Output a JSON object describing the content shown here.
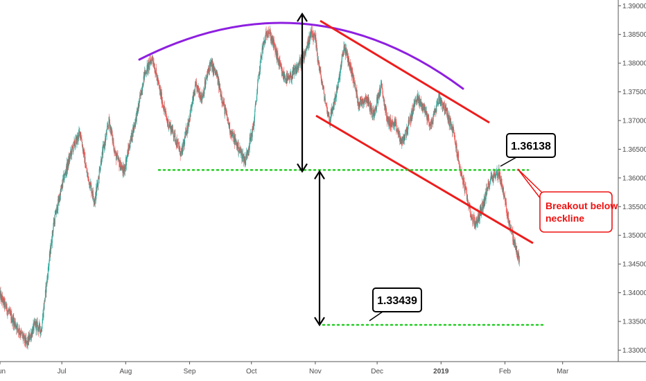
{
  "colors": {
    "up": "#26a69a",
    "down": "#ef5350",
    "arc": "#8e1fe0",
    "channel": "#ee1c1c",
    "neckline": "#22cc22",
    "arrow": "#000000",
    "callout_red": "#e11",
    "axis": "#555555"
  },
  "chart_data": {
    "type": "candlestick",
    "title": "",
    "xlabel": "",
    "ylabel": "",
    "ylim": [
      1.328,
      1.391
    ],
    "y_ticks": [
      "1.39000",
      "1.38500",
      "1.38000",
      "1.37500",
      "1.37000",
      "1.36500",
      "1.36000",
      "1.35500",
      "1.35000",
      "1.34500",
      "1.34000",
      "1.33500",
      "1.33000"
    ],
    "y_tick_values": [
      1.39,
      1.385,
      1.38,
      1.375,
      1.37,
      1.365,
      1.36,
      1.355,
      1.35,
      1.345,
      1.34,
      1.335,
      1.33
    ],
    "x_ticks": [
      "Jun",
      "Jul",
      "Aug",
      "Sep",
      "Oct",
      "Nov",
      "Dec",
      "2019",
      "Feb",
      "Mar"
    ],
    "x_tick_dates": [
      "2018-06-01",
      "2018-07-01",
      "2018-08-01",
      "2018-09-01",
      "2018-10-01",
      "2018-11-01",
      "2018-12-01",
      "2019-01-01",
      "2019-02-01",
      "2019-03-01"
    ],
    "x_start": "2018-06-01",
    "x_end": "2019-03-28",
    "price_path": [
      [
        "2018-06-01",
        1.3395
      ],
      [
        "2018-06-06",
        1.336
      ],
      [
        "2018-06-11",
        1.333
      ],
      [
        "2018-06-14",
        1.331
      ],
      [
        "2018-06-18",
        1.3345
      ],
      [
        "2018-06-21",
        1.3335
      ],
      [
        "2018-06-25",
        1.346
      ],
      [
        "2018-06-27",
        1.352
      ],
      [
        "2018-07-02",
        1.36
      ],
      [
        "2018-07-06",
        1.365
      ],
      [
        "2018-07-10",
        1.368
      ],
      [
        "2018-07-13",
        1.361
      ],
      [
        "2018-07-17",
        1.356
      ],
      [
        "2018-07-20",
        1.363
      ],
      [
        "2018-07-24",
        1.37
      ],
      [
        "2018-07-27",
        1.364
      ],
      [
        "2018-07-31",
        1.361
      ],
      [
        "2018-08-03",
        1.366
      ],
      [
        "2018-08-07",
        1.372
      ],
      [
        "2018-08-10",
        1.378
      ],
      [
        "2018-08-14",
        1.381
      ],
      [
        "2018-08-17",
        1.376
      ],
      [
        "2018-08-21",
        1.37
      ],
      [
        "2018-08-24",
        1.368
      ],
      [
        "2018-08-28",
        1.364
      ],
      [
        "2018-08-31",
        1.369
      ],
      [
        "2018-09-04",
        1.376
      ],
      [
        "2018-09-07",
        1.374
      ],
      [
        "2018-09-11",
        1.38
      ],
      [
        "2018-09-14",
        1.378
      ],
      [
        "2018-09-18",
        1.372
      ],
      [
        "2018-09-21",
        1.368
      ],
      [
        "2018-09-25",
        1.365
      ],
      [
        "2018-09-28",
        1.363
      ],
      [
        "2018-10-02",
        1.369
      ],
      [
        "2018-10-04",
        1.376
      ],
      [
        "2018-10-06",
        1.382
      ],
      [
        "2018-10-09",
        1.386
      ],
      [
        "2018-10-12",
        1.383
      ],
      [
        "2018-10-16",
        1.378
      ],
      [
        "2018-10-19",
        1.377
      ],
      [
        "2018-10-23",
        1.379
      ],
      [
        "2018-10-26",
        1.381
      ],
      [
        "2018-10-30",
        1.385
      ],
      [
        "2018-11-01",
        1.384
      ],
      [
        "2018-11-03",
        1.379
      ],
      [
        "2018-11-06",
        1.373
      ],
      [
        "2018-11-08",
        1.37
      ],
      [
        "2018-11-12",
        1.376
      ],
      [
        "2018-11-15",
        1.383
      ],
      [
        "2018-11-19",
        1.378
      ],
      [
        "2018-11-22",
        1.373
      ],
      [
        "2018-11-26",
        1.374
      ],
      [
        "2018-11-29",
        1.371
      ],
      [
        "2018-12-03",
        1.376
      ],
      [
        "2018-12-06",
        1.37
      ],
      [
        "2018-12-10",
        1.369
      ],
      [
        "2018-12-13",
        1.366
      ],
      [
        "2018-12-17",
        1.37
      ],
      [
        "2018-12-20",
        1.374
      ],
      [
        "2018-12-24",
        1.372
      ],
      [
        "2018-12-27",
        1.369
      ],
      [
        "2018-12-31",
        1.374
      ],
      [
        "2019-01-03",
        1.372
      ],
      [
        "2019-01-07",
        1.368
      ],
      [
        "2019-01-10",
        1.362
      ],
      [
        "2019-01-14",
        1.356
      ],
      [
        "2019-01-16",
        1.353
      ],
      [
        "2019-01-18",
        1.352
      ],
      [
        "2019-01-22",
        1.356
      ],
      [
        "2019-01-25",
        1.36
      ],
      [
        "2019-01-29",
        1.361
      ],
      [
        "2019-01-31",
        1.358
      ],
      [
        "2019-02-02",
        1.354
      ],
      [
        "2019-02-04",
        1.351
      ],
      [
        "2019-02-06",
        1.348
      ],
      [
        "2019-02-08",
        1.3455
      ]
    ],
    "annotations": {
      "neckline": 1.36138,
      "target": 1.33439,
      "neckline_label": "1.36138",
      "target_label": "1.33439",
      "breakout_label_line1": "Breakout below",
      "breakout_label_line2": "neckline"
    }
  }
}
